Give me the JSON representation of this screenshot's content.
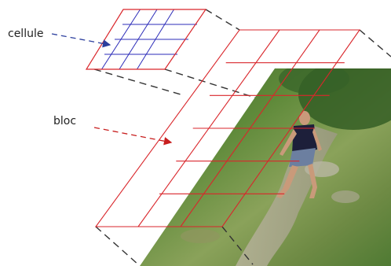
{
  "labels": {
    "cell": "cellule",
    "block": "bloc"
  },
  "colors": {
    "background": "#ffffff",
    "block_grid": "#d9262b",
    "cell_inner_grid": "#2b2bb8",
    "cell_outer": "#d9262b",
    "cell_arrow": "#2c3f9e",
    "block_arrow": "#c81e1e",
    "guide_lines": "#333333",
    "label_text": "#222222"
  },
  "photo": {
    "description_icon": "person-walking-on-trail-photo"
  }
}
